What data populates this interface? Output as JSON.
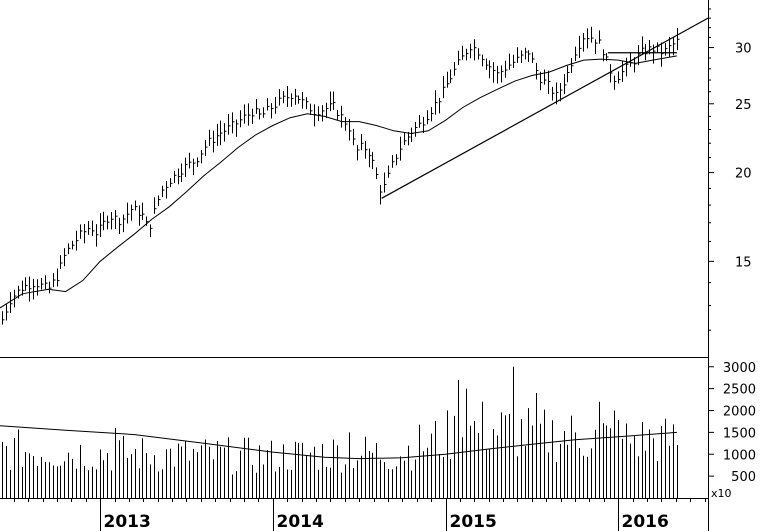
{
  "chart_data": [
    {
      "type": "line",
      "panel": "price",
      "style": "high-low bars (weekly)",
      "scale": "log",
      "ylim": [
        11,
        35
      ],
      "y_ticks": [
        15,
        20,
        25,
        30
      ],
      "x_range": [
        2012.42,
        2016.52
      ],
      "x_tick_labels": [
        "2013",
        "2014",
        "2015",
        "2016"
      ],
      "grid": false,
      "series": [
        {
          "kind": "price",
          "points": [
            [
              2012.42,
              12.2
            ],
            [
              2012.48,
              13.3
            ],
            [
              2012.55,
              13.8
            ],
            [
              2012.62,
              14.0
            ],
            [
              2012.7,
              13.7
            ],
            [
              2012.75,
              14.3
            ],
            [
              2012.8,
              15.4
            ],
            [
              2012.88,
              16.3
            ],
            [
              2012.94,
              16.8
            ],
            [
              2012.98,
              16.4
            ],
            [
              2013.05,
              17.4
            ],
            [
              2013.12,
              17.1
            ],
            [
              2013.18,
              17.8
            ],
            [
              2013.24,
              17.5
            ],
            [
              2013.28,
              16.6
            ],
            [
              2013.35,
              18.8
            ],
            [
              2013.4,
              19.5
            ],
            [
              2013.48,
              20.3
            ],
            [
              2013.55,
              20.8
            ],
            [
              2013.62,
              22.0
            ],
            [
              2013.7,
              22.8
            ],
            [
              2013.76,
              23.2
            ],
            [
              2013.82,
              23.8
            ],
            [
              2013.88,
              24.4
            ],
            [
              2013.93,
              24.0
            ],
            [
              2013.98,
              24.6
            ],
            [
              2014.05,
              25.3
            ],
            [
              2014.12,
              25.9
            ],
            [
              2014.18,
              25.0
            ],
            [
              2014.24,
              24.4
            ],
            [
              2014.3,
              24.6
            ],
            [
              2014.35,
              24.8
            ],
            [
              2014.4,
              23.9
            ],
            [
              2014.44,
              23.2
            ],
            [
              2014.48,
              21.4
            ],
            [
              2014.52,
              21.8
            ],
            [
              2014.56,
              21.3
            ],
            [
              2014.6,
              19.8
            ],
            [
              2014.63,
              18.7
            ],
            [
              2014.66,
              19.5
            ],
            [
              2014.7,
              20.8
            ],
            [
              2014.74,
              21.8
            ],
            [
              2014.8,
              22.8
            ],
            [
              2014.86,
              23.5
            ],
            [
              2014.92,
              24.6
            ],
            [
              2014.97,
              25.6
            ],
            [
              2015.03,
              27.3
            ],
            [
              2015.08,
              28.6
            ],
            [
              2015.14,
              30.2
            ],
            [
              2015.18,
              29.8
            ],
            [
              2015.24,
              28.5
            ],
            [
              2015.3,
              27.5
            ],
            [
              2015.36,
              28.3
            ],
            [
              2015.42,
              28.9
            ],
            [
              2015.48,
              29.6
            ],
            [
              2015.54,
              27.3
            ],
            [
              2015.6,
              26.4
            ],
            [
              2015.64,
              25.6
            ],
            [
              2015.7,
              27.3
            ],
            [
              2015.75,
              29.6
            ],
            [
              2015.8,
              31.2
            ],
            [
              2015.85,
              31.0
            ],
            [
              2015.9,
              30.2
            ],
            [
              2015.94,
              28.3
            ],
            [
              2015.98,
              27.1
            ],
            [
              2016.03,
              27.8
            ],
            [
              2016.08,
              28.6
            ],
            [
              2016.14,
              29.6
            ],
            [
              2016.2,
              29.9
            ],
            [
              2016.26,
              29.5
            ],
            [
              2016.3,
              30.1
            ],
            [
              2016.34,
              30.6
            ]
          ]
        },
        {
          "kind": "moving average",
          "points": [
            [
              2012.42,
              12.9
            ],
            [
              2012.55,
              13.5
            ],
            [
              2012.7,
              13.7
            ],
            [
              2012.8,
              13.6
            ],
            [
              2012.9,
              14.1
            ],
            [
              2013.0,
              15.0
            ],
            [
              2013.1,
              15.7
            ],
            [
              2013.2,
              16.4
            ],
            [
              2013.3,
              17.2
            ],
            [
              2013.4,
              17.9
            ],
            [
              2013.5,
              18.8
            ],
            [
              2013.6,
              19.8
            ],
            [
              2013.7,
              20.7
            ],
            [
              2013.8,
              21.7
            ],
            [
              2013.9,
              22.6
            ],
            [
              2014.0,
              23.3
            ],
            [
              2014.1,
              23.9
            ],
            [
              2014.2,
              24.2
            ],
            [
              2014.3,
              24.0
            ],
            [
              2014.4,
              23.6
            ],
            [
              2014.5,
              23.6
            ],
            [
              2014.6,
              23.3
            ],
            [
              2014.7,
              22.9
            ],
            [
              2014.8,
              22.7
            ],
            [
              2014.9,
              22.9
            ],
            [
              2015.0,
              23.7
            ],
            [
              2015.1,
              24.7
            ],
            [
              2015.2,
              25.5
            ],
            [
              2015.3,
              26.2
            ],
            [
              2015.4,
              26.9
            ],
            [
              2015.5,
              27.4
            ],
            [
              2015.6,
              27.7
            ],
            [
              2015.7,
              28.3
            ],
            [
              2015.8,
              28.8
            ],
            [
              2015.9,
              28.9
            ],
            [
              2016.0,
              28.8
            ],
            [
              2016.1,
              28.5
            ],
            [
              2016.2,
              28.8
            ],
            [
              2016.34,
              29.2
            ]
          ]
        },
        {
          "kind": "trendline",
          "points": [
            [
              2014.63,
              18.4
            ],
            [
              2016.52,
              33.0
            ]
          ]
        },
        {
          "kind": "support line",
          "points": [
            [
              2015.94,
              29.5
            ],
            [
              2016.34,
              29.5
            ]
          ]
        }
      ]
    },
    {
      "type": "bar",
      "panel": "volume",
      "ylim": [
        0,
        3200
      ],
      "y_ticks": [
        500,
        1000,
        1500,
        2000,
        2500,
        3000
      ],
      "unit_label": "x10",
      "x_range": [
        2012.42,
        2016.52
      ],
      "x_tick_labels": [
        "2013",
        "2014",
        "2015",
        "2016"
      ],
      "volume_profile": [
        [
          2012.42,
          1100
        ],
        [
          2012.8,
          1050
        ],
        [
          2013.2,
          1000
        ],
        [
          2013.6,
          980
        ],
        [
          2014.0,
          950
        ],
        [
          2014.4,
          1050
        ],
        [
          2014.7,
          1000
        ],
        [
          2015.0,
          1400
        ],
        [
          2015.2,
          1600
        ],
        [
          2015.4,
          1500
        ],
        [
          2015.6,
          1450
        ],
        [
          2015.8,
          1400
        ],
        [
          2016.0,
          1350
        ],
        [
          2016.34,
          1300
        ]
      ],
      "volume_spikes": [
        [
          2013.08,
          1600
        ],
        [
          2014.45,
          1500
        ],
        [
          2015.08,
          2700
        ],
        [
          2015.12,
          2500
        ],
        [
          2015.4,
          3000
        ],
        [
          2015.52,
          2400
        ],
        [
          2015.88,
          2200
        ],
        [
          2015.98,
          2000
        ]
      ],
      "moving_average": [
        [
          2012.42,
          1650
        ],
        [
          2012.8,
          1550
        ],
        [
          2013.2,
          1450
        ],
        [
          2013.6,
          1250
        ],
        [
          2014.0,
          1050
        ],
        [
          2014.3,
          930
        ],
        [
          2014.5,
          900
        ],
        [
          2014.75,
          920
        ],
        [
          2015.0,
          1000
        ],
        [
          2015.25,
          1120
        ],
        [
          2015.5,
          1230
        ],
        [
          2015.75,
          1330
        ],
        [
          2016.0,
          1400
        ],
        [
          2016.34,
          1500
        ]
      ]
    }
  ]
}
